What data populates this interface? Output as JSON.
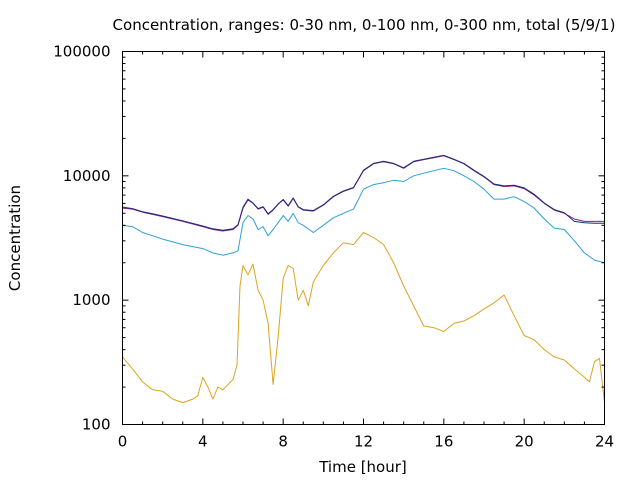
{
  "chart_data": {
    "type": "line",
    "title": "Concentration, ranges: 0-30 nm, 0-100 nm, 0-300 nm, total (5/9/1)",
    "xlabel": "Time [hour]",
    "ylabel": "Concentration",
    "xlim": [
      0,
      24
    ],
    "ylim": [
      100,
      100000
    ],
    "yscale": "log",
    "grid": false,
    "x_ticks": [
      0,
      4,
      8,
      12,
      16,
      20,
      24
    ],
    "x_tick_labels": [
      "0",
      "4",
      "8",
      "12",
      "16",
      "20",
      "24"
    ],
    "y_ticks": [
      100,
      1000,
      10000,
      100000
    ],
    "y_tick_labels": [
      "100",
      "1000",
      "10000",
      "100000"
    ],
    "series": [
      {
        "color": "#DAA520",
        "x": [
          0,
          0.5,
          1,
          1.5,
          2,
          2.5,
          3,
          3.5,
          3.75,
          4,
          4.25,
          4.5,
          4.75,
          5,
          5.5,
          5.7,
          5.85,
          6,
          6.25,
          6.5,
          6.75,
          7,
          7.25,
          7.5,
          7.75,
          8,
          8.25,
          8.5,
          8.75,
          9,
          9.25,
          9.5,
          10,
          10.5,
          11,
          11.5,
          12,
          12.5,
          13,
          13.5,
          14,
          14.5,
          15,
          15.5,
          16,
          16.5,
          17,
          17.5,
          18,
          18.5,
          19,
          19.5,
          20,
          20.5,
          21,
          21.5,
          22,
          22.5,
          23,
          23.25,
          23.5,
          23.75,
          24
        ],
        "y": [
          350,
          280,
          220,
          190,
          185,
          160,
          150,
          160,
          170,
          240,
          200,
          160,
          200,
          190,
          230,
          300,
          1300,
          1900,
          1600,
          1950,
          1200,
          1000,
          650,
          210,
          500,
          1500,
          1900,
          1800,
          1000,
          1200,
          900,
          1400,
          1900,
          2400,
          2900,
          2800,
          3500,
          3200,
          2800,
          2000,
          1300,
          900,
          620,
          600,
          560,
          650,
          680,
          750,
          850,
          950,
          1100,
          750,
          520,
          480,
          400,
          350,
          330,
          280,
          240,
          220,
          320,
          340,
          150
        ]
      },
      {
        "color": "#2E9FD6",
        "x": [
          0,
          0.5,
          1,
          1.5,
          2,
          3,
          4,
          4.5,
          5,
          5.5,
          5.75,
          6,
          6.25,
          6.5,
          6.75,
          7,
          7.25,
          7.5,
          7.75,
          8,
          8.25,
          8.5,
          8.75,
          9,
          9.5,
          10,
          10.5,
          11,
          11.5,
          12,
          12.5,
          13,
          13.5,
          14,
          14.5,
          15,
          15.5,
          16,
          16.5,
          17,
          17.5,
          18,
          18.5,
          19,
          19.5,
          20,
          20.5,
          21,
          21.5,
          22,
          22.5,
          23,
          23.5,
          24
        ],
        "y": [
          4000,
          3900,
          3500,
          3300,
          3100,
          2800,
          2600,
          2400,
          2300,
          2400,
          2500,
          4200,
          4800,
          4500,
          3700,
          3900,
          3300,
          3700,
          4200,
          4800,
          4300,
          5000,
          4200,
          4000,
          3500,
          4000,
          4600,
          5000,
          5400,
          7800,
          8500,
          8800,
          9200,
          9000,
          10000,
          10500,
          11000,
          11500,
          11000,
          10000,
          9000,
          7800,
          6500,
          6500,
          6800,
          6200,
          5500,
          4500,
          3800,
          3700,
          3000,
          2400,
          2100,
          2000
        ]
      },
      {
        "color": "#8B1A89",
        "x": [
          0,
          0.5,
          1,
          1.5,
          2,
          3,
          4,
          4.5,
          5,
          5.5,
          5.75,
          6,
          6.25,
          6.5,
          6.75,
          7,
          7.25,
          7.5,
          7.75,
          8,
          8.25,
          8.5,
          8.75,
          9,
          9.5,
          10,
          10.5,
          11,
          11.5,
          12,
          12.5,
          13,
          13.5,
          14,
          14.5,
          15,
          15.5,
          16,
          16.5,
          17,
          17.5,
          18,
          18.5,
          19,
          19.5,
          20,
          20.5,
          21,
          21.5,
          22,
          22.5,
          23,
          23.5,
          24
        ],
        "y": [
          5500,
          5400,
          5100,
          4900,
          4700,
          4300,
          3900,
          3700,
          3600,
          3700,
          4000,
          5500,
          6400,
          6000,
          5400,
          5600,
          4900,
          5300,
          5900,
          6400,
          5700,
          6600,
          5600,
          5300,
          5200,
          5800,
          6800,
          7500,
          8000,
          11000,
          12500,
          13000,
          12500,
          11500,
          13000,
          13500,
          14000,
          14500,
          13500,
          12500,
          11000,
          9800,
          8500,
          8200,
          8300,
          7900,
          7000,
          6000,
          5300,
          5000,
          4500,
          4300,
          4300,
          4300
        ]
      },
      {
        "color": "#1A2F73",
        "x": [
          0,
          0.5,
          1,
          1.5,
          2,
          3,
          4,
          4.5,
          5,
          5.5,
          5.75,
          6,
          6.25,
          6.5,
          6.75,
          7,
          7.25,
          7.5,
          7.75,
          8,
          8.25,
          8.5,
          8.75,
          9,
          9.5,
          10,
          10.5,
          11,
          11.5,
          12,
          12.5,
          13,
          13.5,
          14,
          14.5,
          15,
          15.5,
          16,
          16.5,
          17,
          17.5,
          18,
          18.5,
          19,
          19.5,
          20,
          20.5,
          21,
          21.5,
          22,
          22.5,
          23,
          23.5,
          24
        ],
        "y": [
          5600,
          5450,
          5150,
          4950,
          4750,
          4350,
          3950,
          3750,
          3650,
          3750,
          4050,
          5600,
          6500,
          6050,
          5450,
          5650,
          4950,
          5350,
          5950,
          6450,
          5750,
          6650,
          5650,
          5350,
          5250,
          5850,
          6850,
          7550,
          8050,
          11100,
          12600,
          13100,
          12600,
          11600,
          13100,
          13600,
          14100,
          14600,
          13600,
          12600,
          11100,
          9900,
          8600,
          8300,
          8400,
          8000,
          7100,
          6050,
          5350,
          5050,
          4300,
          4200,
          4150,
          4150
        ]
      }
    ]
  }
}
